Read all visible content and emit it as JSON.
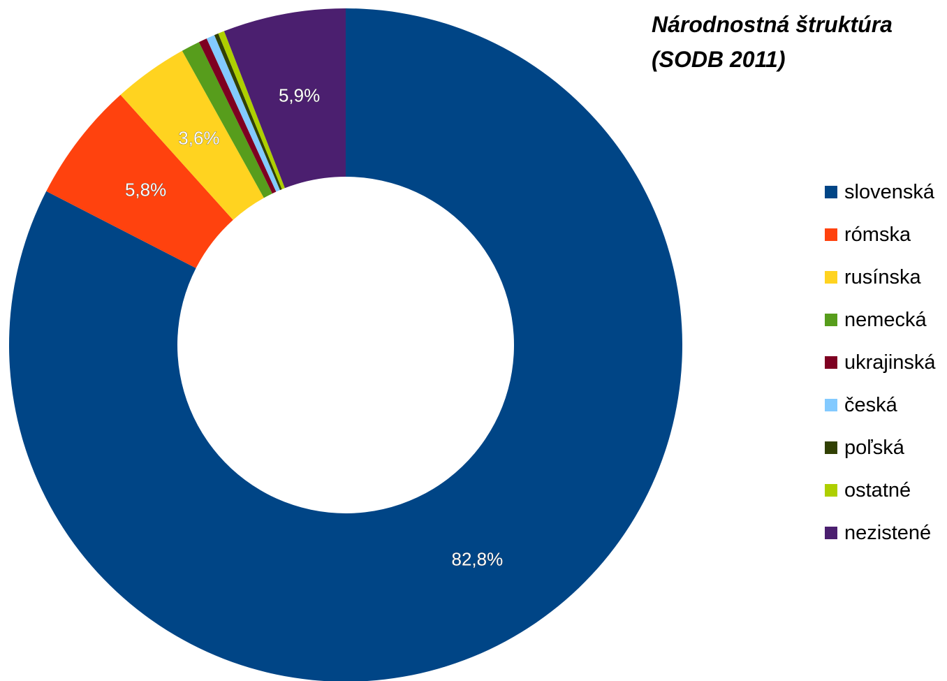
{
  "chart_data": {
    "type": "pie",
    "subtype": "doughnut",
    "title": "Národnostná štruktúra",
    "subtitle": "(SODB 2011)",
    "slices": [
      {
        "name": "slovenská",
        "value": 82.8,
        "label": "82,8%",
        "color": "#004586"
      },
      {
        "name": "rómska",
        "value": 5.8,
        "label": "5,8%",
        "color": "#ff420e"
      },
      {
        "name": "rusínska",
        "value": 3.6,
        "label": "3,6%",
        "color": "#ffd320"
      },
      {
        "name": "nemecká",
        "value": 0.9,
        "label": "",
        "color": "#579d1c"
      },
      {
        "name": "ukrajinská",
        "value": 0.4,
        "label": "",
        "color": "#7e0021"
      },
      {
        "name": "česká",
        "value": 0.4,
        "label": "",
        "color": "#83caff"
      },
      {
        "name": "poľská",
        "value": 0.2,
        "label": "",
        "color": "#314004"
      },
      {
        "name": "ostatné",
        "value": 0.3,
        "label": "",
        "color": "#aecf00"
      },
      {
        "name": "nezistené",
        "value": 5.9,
        "label": "5,9%",
        "color": "#4b1f6f"
      }
    ],
    "legend_position": "right"
  }
}
